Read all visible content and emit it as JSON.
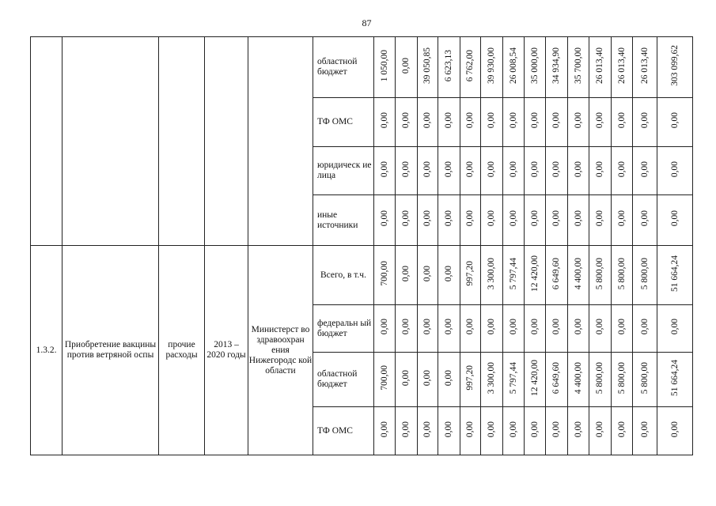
{
  "page_number": "87",
  "blocks": [
    {
      "code": "",
      "name": "",
      "expense_type": "",
      "period": "",
      "executor": "",
      "rows": [
        {
          "source": "областной бюджет",
          "values": [
            "1 050,00",
            "0,00",
            "39 050,85",
            "6 623,13",
            "6 762,00",
            "39 930,00",
            "26 008,54",
            "35 000,00",
            "34 934,90",
            "35 700,00",
            "26 013,40",
            "26 013,40",
            "26 013,40"
          ],
          "total": "303 099,62"
        },
        {
          "source": "ТФ ОМС",
          "values": [
            "0,00",
            "0,00",
            "0,00",
            "0,00",
            "0,00",
            "0,00",
            "0,00",
            "0,00",
            "0,00",
            "0,00",
            "0,00",
            "0,00",
            "0,00"
          ],
          "total": "0,00"
        },
        {
          "source": "юридическ ие лица",
          "values": [
            "0,00",
            "0,00",
            "0,00",
            "0,00",
            "0,00",
            "0,00",
            "0,00",
            "0,00",
            "0,00",
            "0,00",
            "0,00",
            "0,00",
            "0,00"
          ],
          "total": "0,00"
        },
        {
          "source": "иные источники",
          "values": [
            "0,00",
            "0,00",
            "0,00",
            "0,00",
            "0,00",
            "0,00",
            "0,00",
            "0,00",
            "0,00",
            "0,00",
            "0,00",
            "0,00",
            "0,00"
          ],
          "total": "0,00"
        }
      ]
    },
    {
      "code": "1.3.2.",
      "name": "Приобретение вакцины против ветряной оспы",
      "expense_type": "прочие расходы",
      "period": "2013 – 2020 годы",
      "executor": "Министерст во здравоохран ения Нижегородс кой области",
      "rows": [
        {
          "source": "Всего, в т.ч.",
          "values": [
            "700,00",
            "0,00",
            "0,00",
            "0,00",
            "997,20",
            "3 300,00",
            "5 797,44",
            "12 420,00",
            "6 649,60",
            "4 400,00",
            "5 800,00",
            "5 800,00",
            "5 800,00"
          ],
          "total": "51 664,24"
        },
        {
          "source": "федеральн ый бюджет",
          "values": [
            "0,00",
            "0,00",
            "0,00",
            "0,00",
            "0,00",
            "0,00",
            "0,00",
            "0,00",
            "0,00",
            "0,00",
            "0,00",
            "0,00",
            "0,00"
          ],
          "total": "0,00"
        },
        {
          "source": "областной бюджет",
          "values": [
            "700,00",
            "0,00",
            "0,00",
            "0,00",
            "997,20",
            "3 300,00",
            "5 797,44",
            "12 420,00",
            "6 649,60",
            "4 400,00",
            "5 800,00",
            "5 800,00",
            "5 800,00"
          ],
          "total": "51 664,24"
        },
        {
          "source": "ТФ ОМС",
          "values": [
            "0,00",
            "0,00",
            "0,00",
            "0,00",
            "0,00",
            "0,00",
            "0,00",
            "0,00",
            "0,00",
            "0,00",
            "0,00",
            "0,00",
            "0,00"
          ],
          "total": "0,00"
        }
      ]
    }
  ]
}
